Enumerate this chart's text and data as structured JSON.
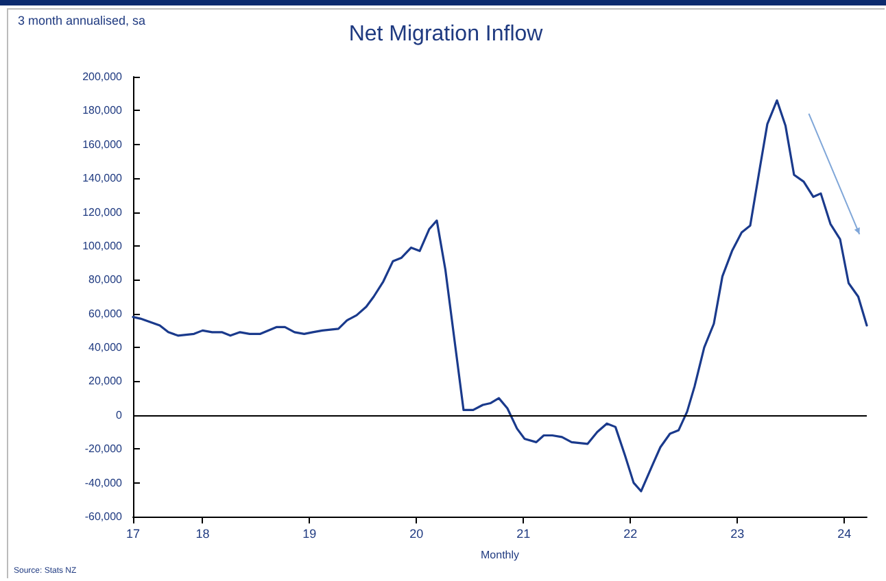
{
  "chart_data": {
    "type": "line",
    "title": "Net Migration Inflow",
    "ylabel": "3 month annualised, sa",
    "xlabel": "Monthly",
    "annotations": [
      "Source: Stats NZ"
    ],
    "x": [
      17.35,
      17.42,
      17.51,
      17.6,
      17.68,
      17.77,
      17.92,
      18,
      18.09,
      18.18,
      18.26,
      18.35,
      18.44,
      18.54,
      18.69,
      18.77,
      18.86,
      18.95,
      19.03,
      19.12,
      19.27,
      19.35,
      19.44,
      19.53,
      19.6,
      19.69,
      19.78,
      19.86,
      19.95,
      20.03,
      20.12,
      20.19,
      20.27,
      20.44,
      20.53,
      20.62,
      20.69,
      20.77,
      20.85,
      20.94,
      21.01,
      21.12,
      21.19,
      21.27,
      21.36,
      21.45,
      21.6,
      21.69,
      21.78,
      21.86,
      21.95,
      22.03,
      22.1,
      22.21,
      22.28,
      22.37,
      22.45,
      22.53,
      22.6,
      22.69,
      22.78,
      22.86,
      22.95,
      23.04,
      23.12,
      23.21,
      23.28,
      23.37,
      23.45,
      23.53,
      23.62,
      23.71,
      23.78,
      23.87,
      23.96,
      24.04,
      24.13,
      24.21
    ],
    "series": [
      {
        "color": "#1a3a8c",
        "values": [
          58000,
          57000,
          55000,
          53000,
          49000,
          47000,
          48000,
          50000,
          49000,
          49000,
          47000,
          49000,
          48000,
          48000,
          52000,
          52000,
          49000,
          48000,
          49000,
          50000,
          51000,
          56000,
          59000,
          64000,
          70000,
          79000,
          91000,
          93000,
          99000,
          97000,
          110000,
          115000,
          86000,
          3000,
          3000,
          6000,
          7000,
          10000,
          4000,
          -8000,
          -14000,
          -16000,
          -12000,
          -12000,
          -13000,
          -16000,
          -17000,
          -10000,
          -5000,
          -7000,
          -24000,
          -40000,
          -45000,
          -29000,
          -19000,
          -11000,
          -9000,
          2000,
          17000,
          40000,
          54000,
          82000,
          97000,
          108000,
          112000,
          146000,
          172000,
          186000,
          171000,
          142000,
          138000,
          129000,
          131000,
          113000,
          104000,
          78000,
          70000,
          53000
        ]
      }
    ],
    "xlim": [
      17.35,
      24.21
    ],
    "xticks": [
      {
        "value": 17.35,
        "label": "17"
      },
      18,
      19,
      20,
      21,
      22,
      23,
      24
    ],
    "ylim": [
      -60000,
      200000
    ],
    "yticks": [
      {
        "value": -60000,
        "label": "-60,000"
      },
      {
        "value": -40000,
        "label": "-40,000"
      },
      {
        "value": -20000,
        "label": "-20,000"
      },
      0,
      {
        "value": 20000,
        "label": "20,000"
      },
      {
        "value": 40000,
        "label": "40,000"
      },
      {
        "value": 60000,
        "label": "60,000"
      },
      {
        "value": 80000,
        "label": "80,000"
      },
      {
        "value": 100000,
        "label": "100,000"
      },
      {
        "value": 120000,
        "label": "120,000"
      },
      {
        "value": 140000,
        "label": "140,000"
      },
      {
        "value": 160000,
        "label": "160,000"
      },
      {
        "value": 180000,
        "label": "180,000"
      },
      {
        "value": 200000,
        "label": "200,000"
      }
    ],
    "ref_lines": [
      {
        "axis": "y",
        "value": 0,
        "color": "#000000"
      }
    ],
    "marker": "none",
    "line_style": "solid"
  }
}
